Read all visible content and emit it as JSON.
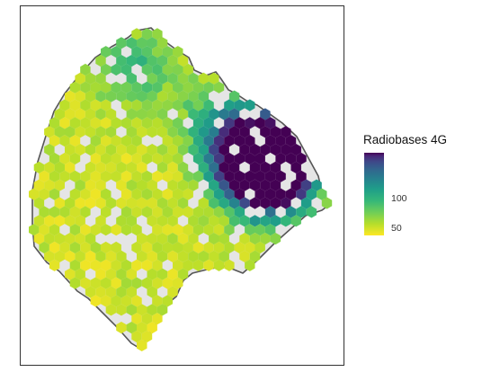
{
  "legend": {
    "title": "Radiobases 4G",
    "ticks": [
      {
        "label": "50",
        "value": 50
      },
      {
        "label": "100",
        "value": 100
      }
    ],
    "range": [
      1,
      142
    ]
  },
  "colors": {
    "panel_border": "#333333",
    "region_fill": "#e5e5e5",
    "region_outline": "#555555",
    "empty_hex": "#ebebeb",
    "viridis_low": "#fde725",
    "viridis_high": "#440154"
  }
}
